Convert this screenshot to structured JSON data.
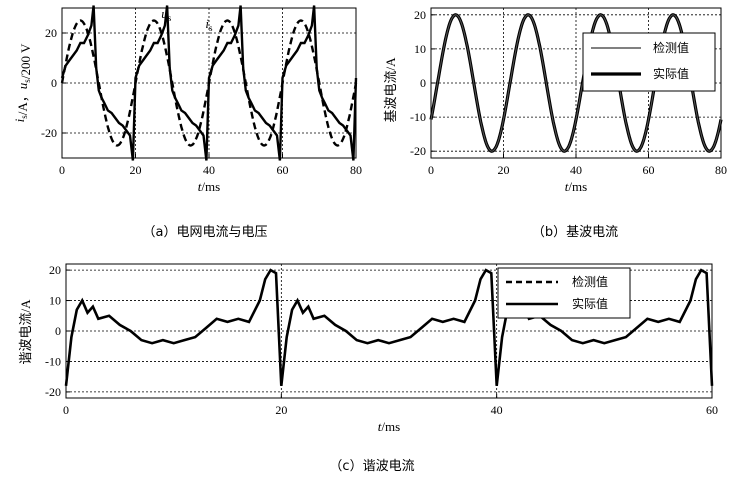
{
  "chart_data": [
    {
      "type": "line",
      "caption": "（a）电网电流与电压",
      "ylabel_parts": [
        "i",
        "s",
        "/A，",
        "u",
        "s",
        "/200 V"
      ],
      "xlabel_parts": [
        "t",
        "/ms"
      ],
      "xlim": [
        0,
        80
      ],
      "ylim": [
        -30,
        30
      ],
      "xticks": [
        0,
        20,
        40,
        60,
        80
      ],
      "yticks": [
        -20,
        0,
        20
      ],
      "grid": true,
      "annotations": [
        {
          "name": "u",
          "sub": "s",
          "x": 27,
          "y": 26
        },
        {
          "name": "i",
          "sub": "s",
          "x": 39,
          "y": 22
        }
      ],
      "series": [
        {
          "name": "us",
          "style": "dashed",
          "amplitude": 25,
          "period": 20,
          "phase_peak_ms": 5
        },
        {
          "name": "is",
          "style": "solid",
          "x": [
            0,
            1,
            2,
            3,
            4,
            5,
            6,
            7,
            8,
            8.6,
            9.3,
            10,
            10.8,
            11.5,
            12.5,
            13.5,
            14.5,
            15.5,
            16.5,
            17.5,
            18.5,
            19.3,
            20
          ],
          "y": [
            2,
            7,
            9,
            11,
            13,
            16,
            16,
            19,
            23,
            31,
            6,
            -3,
            -6,
            -8,
            -11,
            -12,
            -14,
            -16,
            -17,
            -19,
            -21,
            -31,
            2
          ]
        }
      ]
    },
    {
      "type": "line",
      "caption": "（b）基波电流",
      "ylabel": "基波电流/A",
      "xlabel_parts": [
        "t",
        "/ms"
      ],
      "xlim": [
        0,
        80
      ],
      "ylim": [
        -22,
        22
      ],
      "xticks": [
        0,
        20,
        40,
        60,
        80
      ],
      "yticks": [
        -20,
        -10,
        0,
        10,
        20
      ],
      "grid": true,
      "legend": {
        "position": "top-right",
        "entries": [
          "检测值",
          "实际值"
        ]
      },
      "series": [
        {
          "name": "检测值",
          "style": "solid-thin",
          "amplitude": 20,
          "period": 20,
          "phase_peak_ms": 6.8
        },
        {
          "name": "实际值",
          "style": "solid-thick",
          "amplitude": 20,
          "period": 20,
          "phase_peak_ms": 6.8
        }
      ]
    },
    {
      "type": "line",
      "caption": "（c）谐波电流",
      "ylabel": "谐波电流/A",
      "xlabel_parts": [
        "t",
        "/ms"
      ],
      "xlim": [
        0,
        60
      ],
      "ylim": [
        -22,
        22
      ],
      "xticks": [
        0,
        20,
        40,
        60
      ],
      "yticks": [
        -20,
        -10,
        0,
        10,
        20
      ],
      "grid": true,
      "legend": {
        "position": "top-right",
        "entries": [
          "检测值",
          "实际值"
        ]
      },
      "series": [
        {
          "name": "检测值",
          "style": "dashed",
          "x": [
            0,
            0.5,
            1,
            1.5,
            2,
            2.5,
            3,
            4,
            5,
            6,
            7,
            8,
            9,
            10,
            11,
            12,
            13,
            14,
            15,
            16,
            17,
            18,
            18.5,
            19,
            19.5,
            20
          ],
          "y": [
            -18,
            -2,
            7,
            10,
            6,
            8,
            4,
            5,
            2,
            0,
            -3,
            -4,
            -3,
            -4,
            -3,
            -2,
            1,
            4,
            3,
            4,
            3,
            10,
            17,
            20,
            19,
            -18
          ]
        },
        {
          "name": "实际值",
          "style": "solid",
          "x": [
            0,
            0.5,
            1,
            1.5,
            2,
            2.5,
            3,
            4,
            5,
            6,
            7,
            8,
            9,
            10,
            11,
            12,
            13,
            14,
            15,
            16,
            17,
            18,
            18.5,
            19,
            19.5,
            20
          ],
          "y": [
            -18,
            -2,
            7,
            10,
            6,
            8,
            4,
            5,
            2,
            0,
            -3,
            -4,
            -3,
            -4,
            -3,
            -2,
            1,
            4,
            3,
            4,
            3,
            10,
            17,
            20,
            19,
            -18
          ]
        }
      ]
    }
  ]
}
